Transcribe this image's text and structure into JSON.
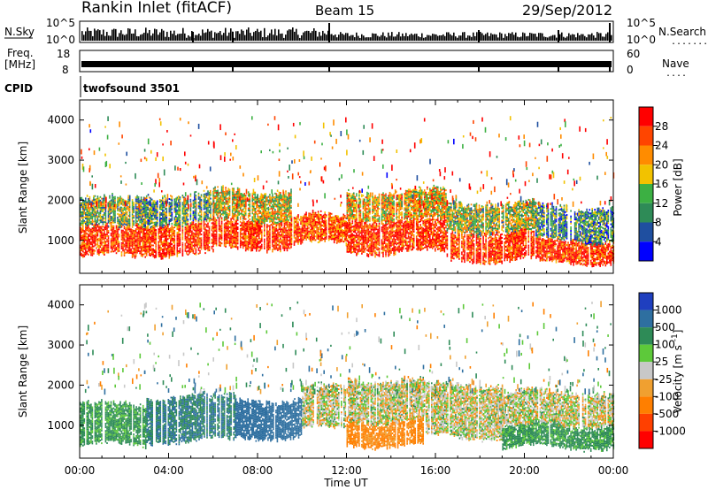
{
  "header": {
    "station": "Rankin Inlet (fitACF)",
    "beam": "Beam 15",
    "date": "29/Sep/2012"
  },
  "strip_labels": {
    "nsky": "N.Sky",
    "nsearch": "N.Search",
    "freq_line1": "Freq.",
    "freq_line2": "[MHz]",
    "nave": "Nave",
    "cpid": "CPID",
    "cpid_value": "twofsound 3501"
  },
  "strip_ticks": {
    "noise_left": [
      "10^5",
      "10^0"
    ],
    "noise_right": [
      "10^5",
      "10^0"
    ],
    "freq_left": [
      "18",
      "8"
    ],
    "nave_right": [
      "60",
      "0"
    ]
  },
  "colors": {
    "power_scale": [
      "#0000ff",
      "#1f4fa0",
      "#2e8b57",
      "#3cb043",
      "#f2c200",
      "#ff8c00",
      "#ff4500",
      "#ff0000"
    ],
    "velocity_scale": [
      "#1f3fbf",
      "#2e6fa0",
      "#2e8b57",
      "#5dc93a",
      "#c8c8c8",
      "#f0a030",
      "#ff7f00",
      "#ff4000",
      "#ff0000"
    ]
  },
  "chart_data": [
    {
      "type": "heatmap",
      "name": "power",
      "ylabel": "Slant Range [km]",
      "xlabel": "",
      "x_ticks": [
        "00:00",
        "04:00",
        "08:00",
        "12:00",
        "16:00",
        "20:00",
        "00:00"
      ],
      "y_ticks": [
        "1000",
        "2000",
        "3000",
        "4000"
      ],
      "xlim_hours": [
        0,
        24
      ],
      "ylim_km": [
        180,
        4500
      ],
      "colorbar_label": "Power [dB]",
      "colorbar_ticks": [
        "4",
        "8",
        "12",
        "16",
        "20",
        "24",
        "28"
      ],
      "colorbar_range": [
        0,
        32
      ],
      "bands": [
        {
          "t0": 0.0,
          "t1": 2.5,
          "r0": 600,
          "r1": 1300,
          "level": 28
        },
        {
          "t0": 0.0,
          "t1": 2.5,
          "r0": 1300,
          "r1": 2000,
          "level": 14
        },
        {
          "t0": 2.5,
          "t1": 6.0,
          "r0": 650,
          "r1": 1400,
          "level": 28
        },
        {
          "t0": 2.5,
          "t1": 6.0,
          "r0": 1400,
          "r1": 2100,
          "level": 12
        },
        {
          "t0": 6.0,
          "t1": 9.5,
          "r0": 800,
          "r1": 1500,
          "level": 28
        },
        {
          "t0": 6.0,
          "t1": 9.5,
          "r0": 1500,
          "r1": 2200,
          "level": 18
        },
        {
          "t0": 9.5,
          "t1": 12.0,
          "r0": 900,
          "r1": 1600,
          "level": 26
        },
        {
          "t0": 12.0,
          "t1": 16.5,
          "r0": 700,
          "r1": 1500,
          "level": 28
        },
        {
          "t0": 12.0,
          "t1": 16.5,
          "r0": 1500,
          "r1": 2200,
          "level": 20
        },
        {
          "t0": 16.5,
          "t1": 20.5,
          "r0": 500,
          "r1": 1200,
          "level": 28
        },
        {
          "t0": 16.5,
          "t1": 20.5,
          "r0": 1200,
          "r1": 1900,
          "level": 16
        },
        {
          "t0": 20.5,
          "t1": 24.0,
          "r0": 450,
          "r1": 1000,
          "level": 28
        },
        {
          "t0": 20.5,
          "t1": 24.0,
          "r0": 1000,
          "r1": 1800,
          "level": 10
        }
      ]
    },
    {
      "type": "heatmap",
      "name": "velocity",
      "ylabel": "Slant Range [km]",
      "xlabel": "Time UT",
      "x_ticks": [
        "00:00",
        "04:00",
        "08:00",
        "12:00",
        "16:00",
        "20:00",
        "00:00"
      ],
      "y_ticks": [
        "1000",
        "2000",
        "3000",
        "4000"
      ],
      "xlim_hours": [
        0,
        24
      ],
      "ylim_km": [
        180,
        4500
      ],
      "colorbar_label": "Velocity [m s^-1]",
      "colorbar_ticks": [
        "1000",
        "500",
        "100",
        "25",
        "-25",
        "-100",
        "-500",
        "-1000"
      ],
      "bands": [
        {
          "t0": 0.0,
          "t1": 3.0,
          "r0": 500,
          "r1": 1500,
          "level": 100
        },
        {
          "t0": 3.0,
          "t1": 7.0,
          "r0": 600,
          "r1": 1700,
          "level": 300
        },
        {
          "t0": 7.0,
          "t1": 10.0,
          "r0": 700,
          "r1": 1600,
          "level": 500
        },
        {
          "t0": 10.0,
          "t1": 12.0,
          "r0": 900,
          "r1": 1900,
          "level": 0
        },
        {
          "t0": 12.0,
          "t1": 15.5,
          "r0": 500,
          "r1": 1100,
          "level": -100
        },
        {
          "t0": 12.0,
          "t1": 15.5,
          "r0": 1100,
          "r1": 2100,
          "level": 0
        },
        {
          "t0": 15.5,
          "t1": 19.0,
          "r0": 700,
          "r1": 2000,
          "level": 0
        },
        {
          "t0": 19.0,
          "t1": 24.0,
          "r0": 450,
          "r1": 1000,
          "level": 100
        },
        {
          "t0": 19.0,
          "t1": 24.0,
          "r0": 1000,
          "r1": 1800,
          "level": 0
        }
      ]
    }
  ]
}
